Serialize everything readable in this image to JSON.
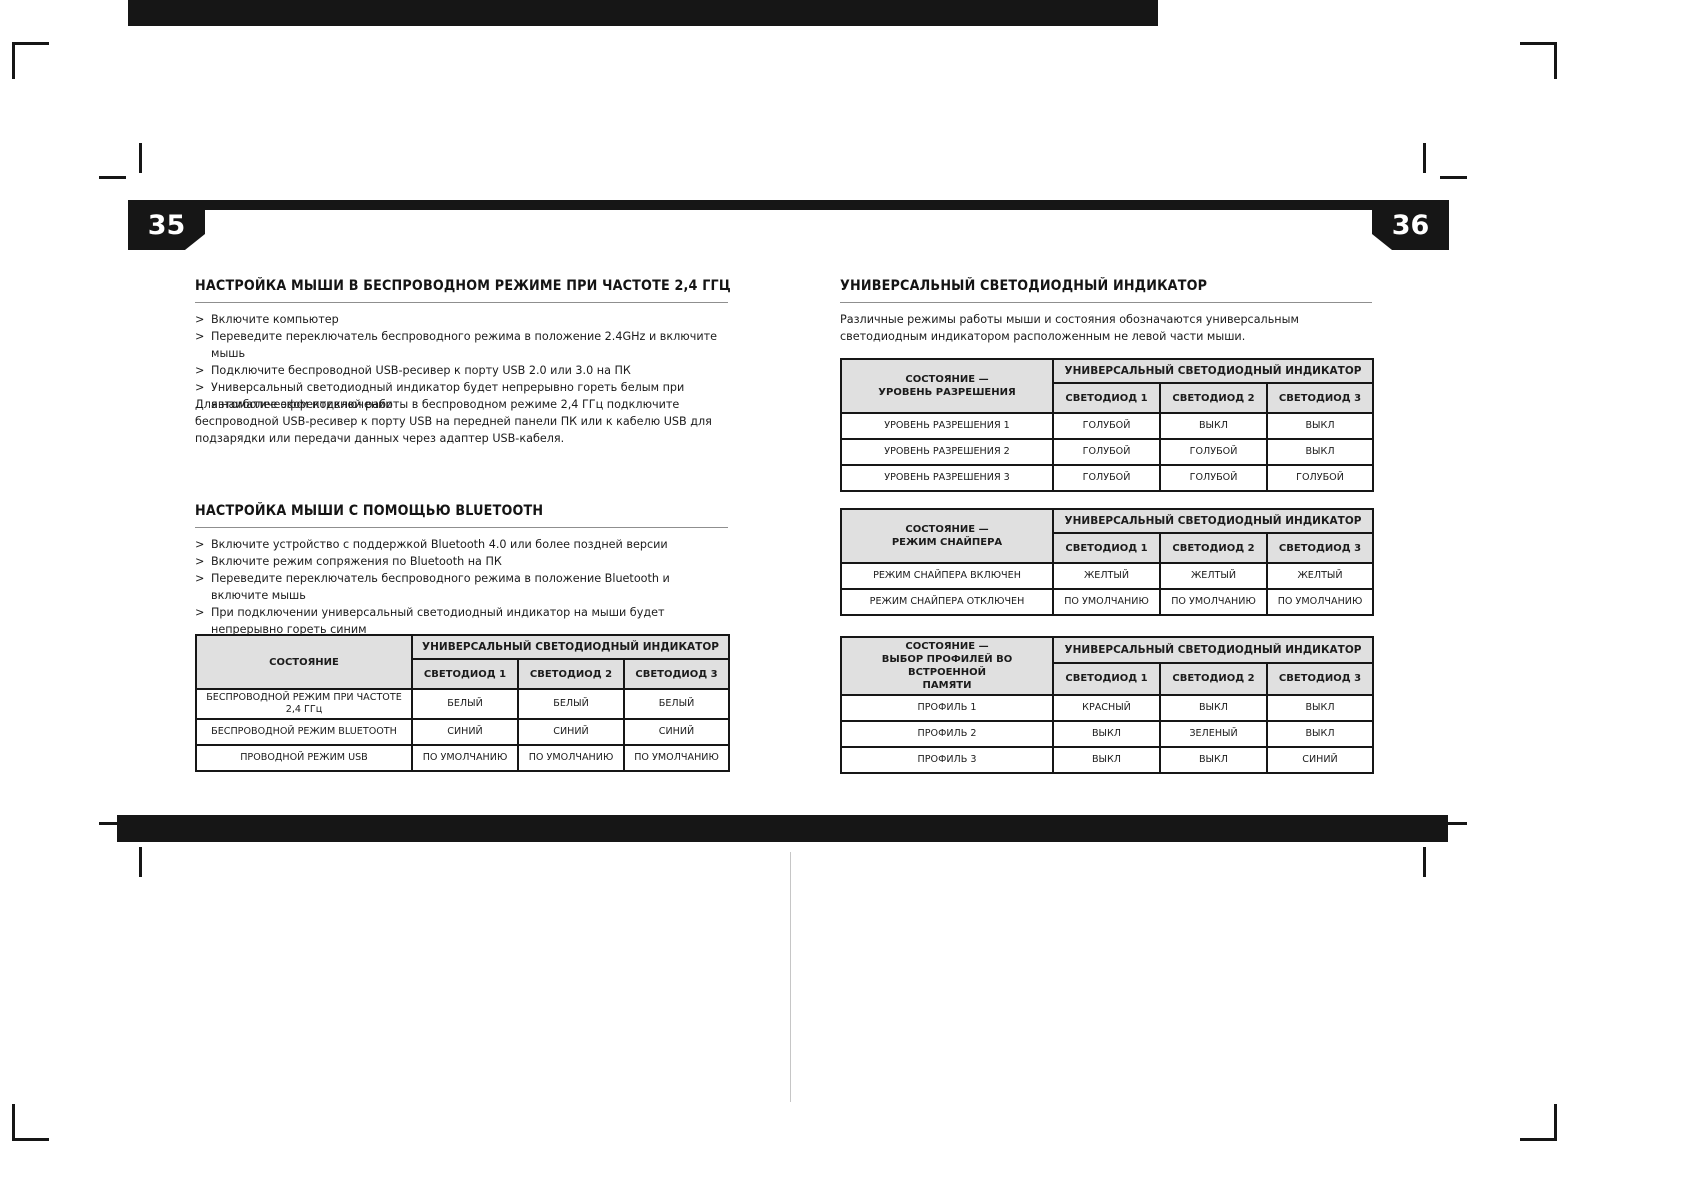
{
  "colors": {
    "ink_black": "#161616",
    "table_header_bg": "#e0e0e0",
    "rule_gray": "#8f8f8f"
  },
  "page_left": {
    "page_number": "35",
    "section1": {
      "title": "НАСТРОЙКА МЫШИ В БЕСПРОВОДНОМ РЕЖИМЕ ПРИ ЧАСТОТЕ 2,4 ГГЦ",
      "bullets": [
        "Включите компьютер",
        "Переведите переключатель беспроводного режима в положение 2.4GHz и включите мышь",
        "Подключите беспроводной USB-ресивер к порту USB 2.0 или 3.0 на ПК",
        "Универсальный светодиодный индикатор будет непрерывно гореть белым при автоматическом подключении"
      ],
      "paragraph": "Для наиболее эффективной работы в беспроводном режиме 2,4 ГГц подключите беспроводной USB-ресивер к порту USB на передней панели ПК или к кабелю USB для подзарядки или передачи данных через адаптер USB-кабеля."
    },
    "section2": {
      "title": "НАСТРОЙКА МЫШИ С ПОМОЩЬЮ BLUETOOTH",
      "bullets": [
        "Включите устройство с поддержкой Bluetooth 4.0 или более поздней версии",
        "Включите режим сопряжения по Bluetooth на ПК",
        "Переведите переключатель беспроводного режима в положение Bluetooth и включите мышь",
        "При подключении универсальный светодиодный индикатор на мыши будет непрерывно гореть синим"
      ]
    },
    "table": {
      "state_header_lines": [
        "СОСТОЯНИЕ"
      ],
      "span_header": "УНИВЕРСАЛЬНЫЙ СВЕТОДИОДНЫЙ ИНДИКАТОР",
      "led_headers": [
        "СВЕТОДИОД 1",
        "СВЕТОДИОД 2",
        "СВЕТОДИОД 3"
      ],
      "rows": [
        {
          "state": "БЕСПРОВОДНОЙ РЕЖИМ ПРИ ЧАСТОТЕ 2,4 ГГц",
          "leds": [
            "БЕЛЫЙ",
            "БЕЛЫЙ",
            "БЕЛЫЙ"
          ]
        },
        {
          "state": "БЕСПРОВОДНОЙ РЕЖИМ BLUETOOTH",
          "leds": [
            "СИНИЙ",
            "СИНИЙ",
            "СИНИЙ"
          ]
        },
        {
          "state": "ПРОВОДНОЙ РЕЖИМ USB",
          "leds": [
            "ПО УМОЛЧАНИЮ",
            "ПО УМОЛЧАНИЮ",
            "ПО УМОЛЧАНИЮ"
          ]
        }
      ]
    }
  },
  "page_right": {
    "page_number": "36",
    "section": {
      "title": "УНИВЕРСАЛЬНЫЙ СВЕТОДИОДНЫЙ ИНДИКАТОР",
      "paragraph": "Различные режимы работы мыши и состояния обозначаются универсальным светодиодным индикатором расположенным не левой части мыши."
    },
    "tables": [
      {
        "state_header_lines": [
          "СОСТОЯНИЕ —",
          "УРОВЕНЬ РАЗРЕШЕНИЯ"
        ],
        "span_header": "УНИВЕРСАЛЬНЫЙ СВЕТОДИОДНЫЙ ИНДИКАТОР",
        "led_headers": [
          "СВЕТОДИОД 1",
          "СВЕТОДИОД 2",
          "СВЕТОДИОД 3"
        ],
        "rows": [
          {
            "state": "УРОВЕНЬ РАЗРЕШЕНИЯ 1",
            "leds": [
              "ГОЛУБОЙ",
              "ВЫКЛ",
              "ВЫКЛ"
            ]
          },
          {
            "state": "УРОВЕНЬ РАЗРЕШЕНИЯ 2",
            "leds": [
              "ГОЛУБОЙ",
              "ГОЛУБОЙ",
              "ВЫКЛ"
            ]
          },
          {
            "state": "УРОВЕНЬ РАЗРЕШЕНИЯ 3",
            "leds": [
              "ГОЛУБОЙ",
              "ГОЛУБОЙ",
              "ГОЛУБОЙ"
            ]
          }
        ]
      },
      {
        "state_header_lines": [
          "СОСТОЯНИЕ —",
          "РЕЖИМ СНАЙПЕРА"
        ],
        "span_header": "УНИВЕРСАЛЬНЫЙ СВЕТОДИОДНЫЙ ИНДИКАТОР",
        "led_headers": [
          "СВЕТОДИОД 1",
          "СВЕТОДИОД 2",
          "СВЕТОДИОД 3"
        ],
        "rows": [
          {
            "state": "РЕЖИМ СНАЙПЕРА ВКЛЮЧЕН",
            "leds": [
              "ЖЕЛТЫЙ",
              "ЖЕЛТЫЙ",
              "ЖЕЛТЫЙ"
            ]
          },
          {
            "state": "РЕЖИМ СНАЙПЕРА ОТКЛЮЧЕН",
            "leds": [
              "ПО УМОЛЧАНИЮ",
              "ПО УМОЛЧАНИЮ",
              "ПО УМОЛЧАНИЮ"
            ]
          }
        ]
      },
      {
        "state_header_lines": [
          "СОСТОЯНИЕ —",
          "ВЫБОР ПРОФИЛЕЙ ВО ВСТРОЕННОЙ",
          "ПАМЯТИ"
        ],
        "span_header": "УНИВЕРСАЛЬНЫЙ СВЕТОДИОДНЫЙ ИНДИКАТОР",
        "led_headers": [
          "СВЕТОДИОД 1",
          "СВЕТОДИОД 2",
          "СВЕТОДИОД 3"
        ],
        "rows": [
          {
            "state": "ПРОФИЛЬ 1",
            "leds": [
              "КРАСНЫЙ",
              "ВЫКЛ",
              "ВЫКЛ"
            ]
          },
          {
            "state": "ПРОФИЛЬ 2",
            "leds": [
              "ВЫКЛ",
              "ЗЕЛЕНЫЙ",
              "ВЫКЛ"
            ]
          },
          {
            "state": "ПРОФИЛЬ 3",
            "leds": [
              "ВЫКЛ",
              "ВЫКЛ",
              "СИНИЙ"
            ]
          }
        ]
      }
    ]
  }
}
